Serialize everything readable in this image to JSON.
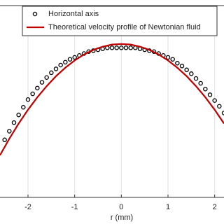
{
  "chart_data": {
    "type": "line",
    "x_label": "r (mm)",
    "xlim": [
      -2.6,
      2.2
    ],
    "xticks": [
      -2,
      -1,
      0,
      1,
      2
    ],
    "ylim": [
      0,
      1
    ],
    "grid": true,
    "legend": "top",
    "series": [
      {
        "name": "Horizontal axis",
        "color": "#000000",
        "marker": "circle",
        "x": [
          -2.5,
          -2.4,
          -2.3,
          -2.2,
          -2.1,
          -2.0,
          -1.9,
          -1.8,
          -1.7,
          -1.6,
          -1.5,
          -1.4,
          -1.3,
          -1.2,
          -1.1,
          -1.0,
          -0.9,
          -0.8,
          -0.7,
          -0.6,
          -0.5,
          -0.4,
          -0.3,
          -0.2,
          -0.1,
          0,
          0.1,
          0.2,
          0.3,
          0.4,
          0.5,
          0.6,
          0.7,
          0.8,
          0.9,
          1.0,
          1.1,
          1.2,
          1.3,
          1.4,
          1.5,
          1.6,
          1.7,
          1.8,
          1.9,
          2.0,
          2.1,
          2.2
        ],
        "values": [
          0.3,
          0.345,
          0.39,
          0.43,
          0.47,
          0.51,
          0.54,
          0.57,
          0.6,
          0.625,
          0.65,
          0.67,
          0.69,
          0.705,
          0.72,
          0.73,
          0.74,
          0.75,
          0.76,
          0.765,
          0.77,
          0.775,
          0.78,
          0.78,
          0.78,
          0.78,
          0.78,
          0.78,
          0.78,
          0.775,
          0.77,
          0.765,
          0.76,
          0.75,
          0.74,
          0.73,
          0.72,
          0.7,
          0.685,
          0.665,
          0.645,
          0.62,
          0.595,
          0.565,
          0.535,
          0.505,
          0.475,
          0.44
        ]
      },
      {
        "name": "Theoretical velocity profile of Newtonian fluid",
        "color": "#c00000",
        "marker": "none",
        "x": [
          -2.6,
          -2.4,
          -2.2,
          -2.0,
          -1.8,
          -1.6,
          -1.4,
          -1.2,
          -1.0,
          -0.8,
          -0.6,
          -0.4,
          -0.2,
          0,
          0.2,
          0.4,
          0.6,
          0.8,
          1.0,
          1.2,
          1.4,
          1.6,
          1.8,
          2.0,
          2.2
        ],
        "values": [
          0.22,
          0.306,
          0.385,
          0.457,
          0.522,
          0.58,
          0.632,
          0.676,
          0.714,
          0.745,
          0.769,
          0.786,
          0.797,
          0.8,
          0.797,
          0.786,
          0.769,
          0.745,
          0.714,
          0.676,
          0.632,
          0.58,
          0.522,
          0.457,
          0.385
        ]
      }
    ]
  }
}
